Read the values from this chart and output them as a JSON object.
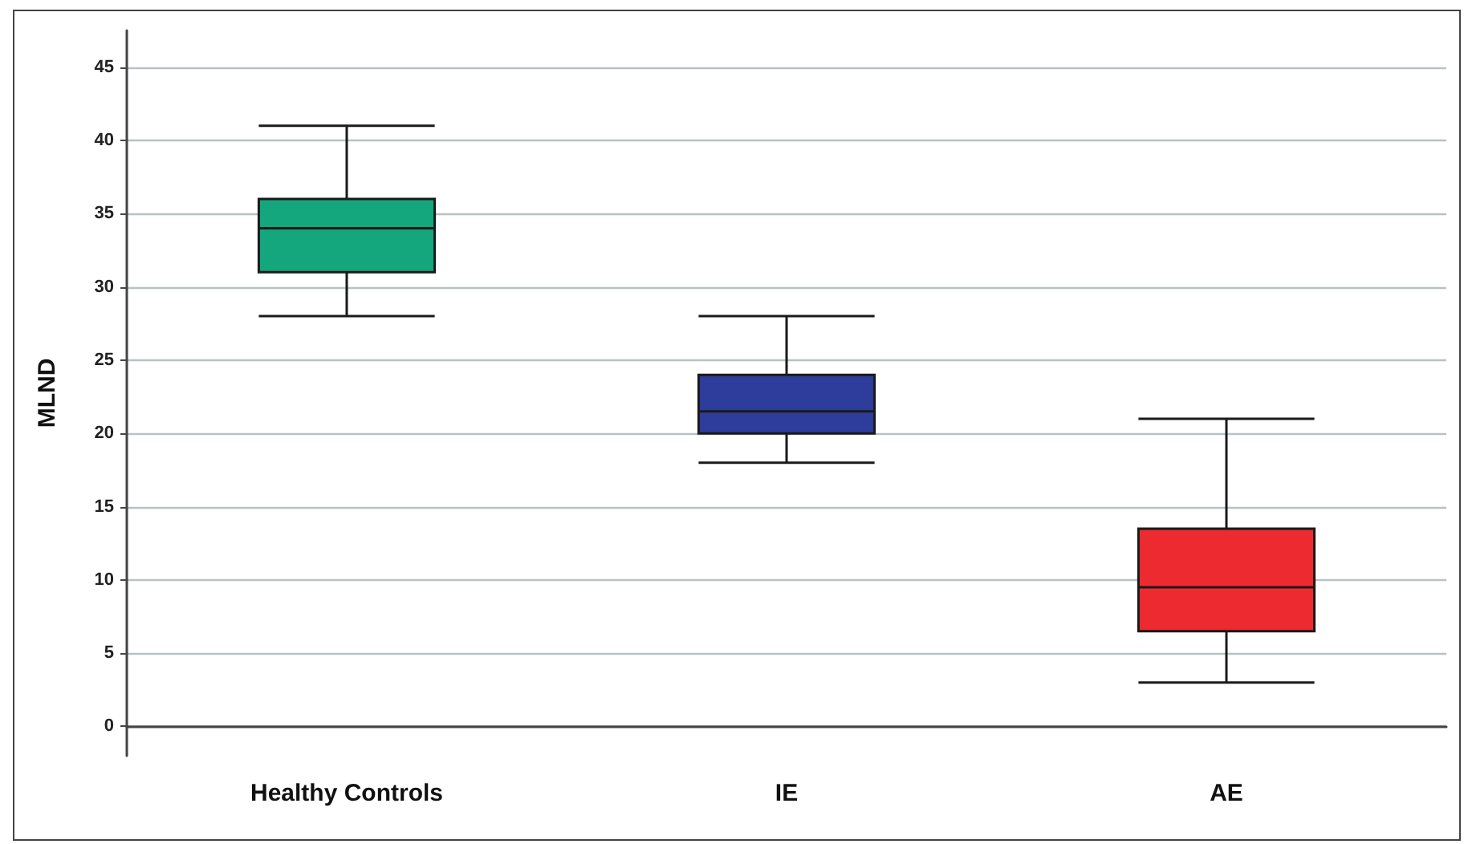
{
  "chart_data": {
    "type": "box",
    "ylabel": "MLND",
    "categories": [
      "Healthy Controls",
      "IE",
      "AE"
    ],
    "boxes": [
      {
        "low": 28,
        "q1": 31,
        "median": 34,
        "q3": 36,
        "high": 41
      },
      {
        "low": 18,
        "q1": 20,
        "median": 21.5,
        "q3": 24,
        "high": 28
      },
      {
        "low": 3,
        "q1": 6.5,
        "median": 9.5,
        "q3": 13.5,
        "high": 21
      }
    ],
    "colors": [
      "#14a67c",
      "#2e3c9c",
      "#ec2a30"
    ],
    "ylim": [
      -2,
      47.5
    ],
    "yticks": [
      0,
      5,
      10,
      15,
      20,
      25,
      30,
      35,
      40,
      45
    ],
    "grid": "y"
  }
}
